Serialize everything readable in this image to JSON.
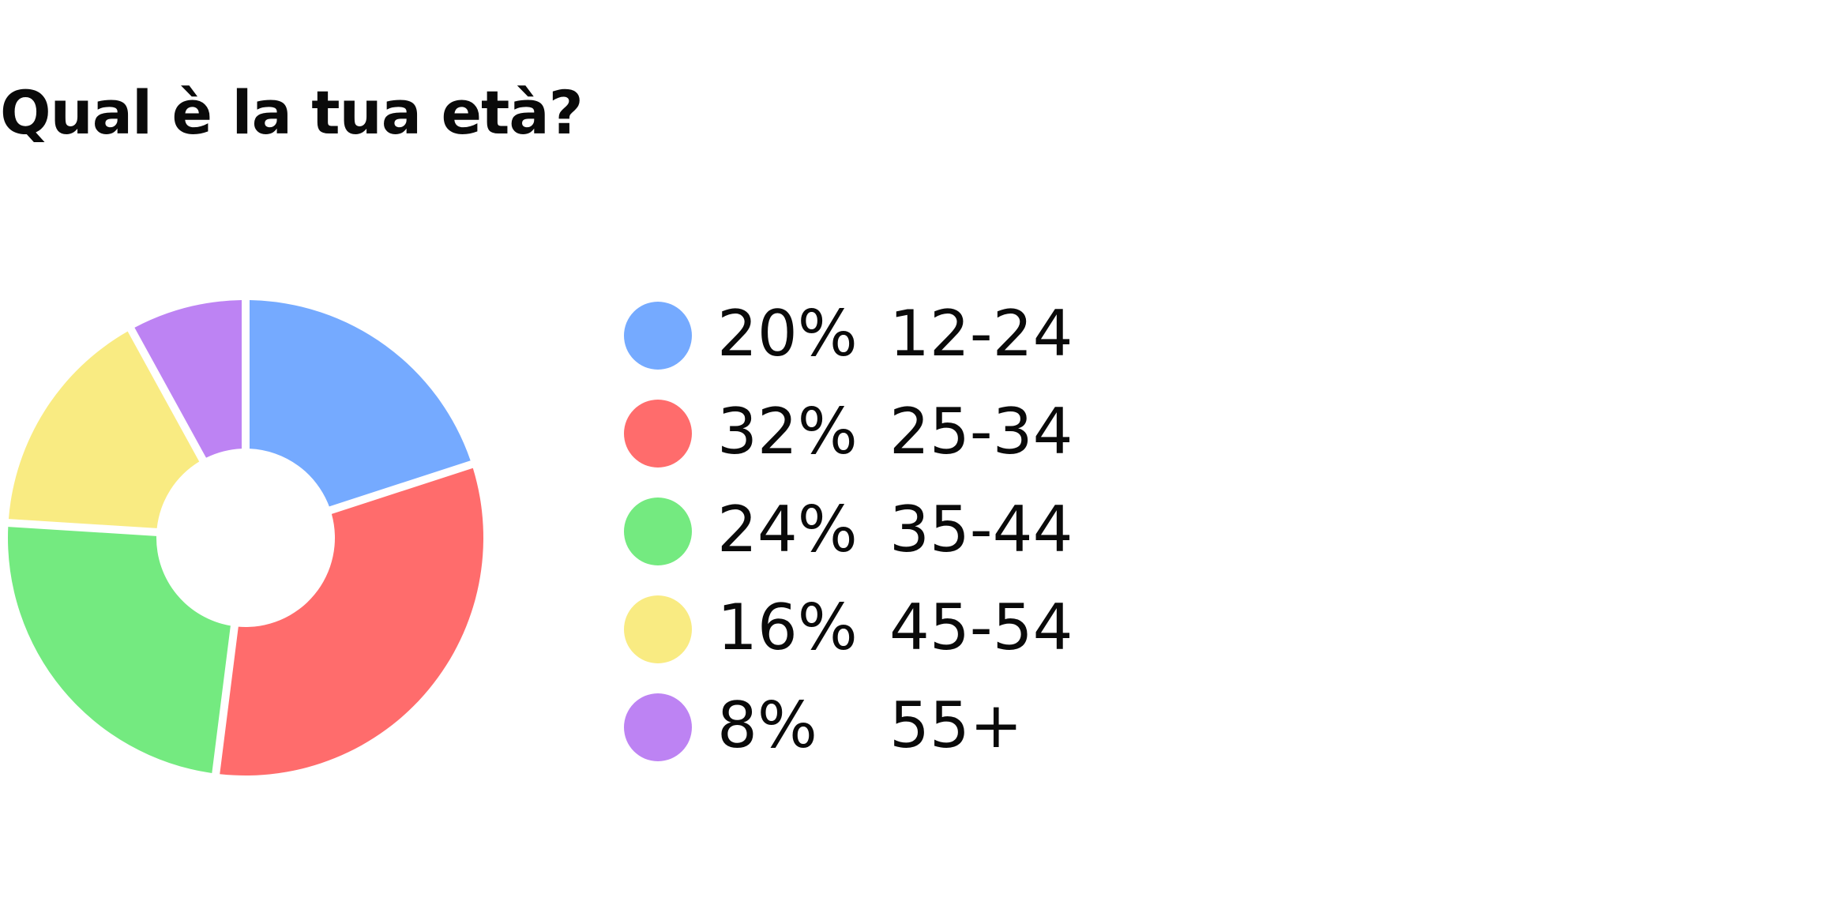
{
  "chart_data": {
    "type": "pie",
    "title": "Qual è la tua età?",
    "categories": [
      "12-24",
      "25-34",
      "35-44",
      "45-54",
      "55+"
    ],
    "values": [
      20,
      32,
      24,
      16,
      8
    ],
    "labels": [
      "20%",
      "32%",
      "24%",
      "16%",
      "8%"
    ],
    "colors": [
      "#75aaff",
      "#ff6c6c",
      "#74ea80",
      "#f9eb82",
      "#bd83f3"
    ],
    "donut": true,
    "legend_position": "right"
  }
}
